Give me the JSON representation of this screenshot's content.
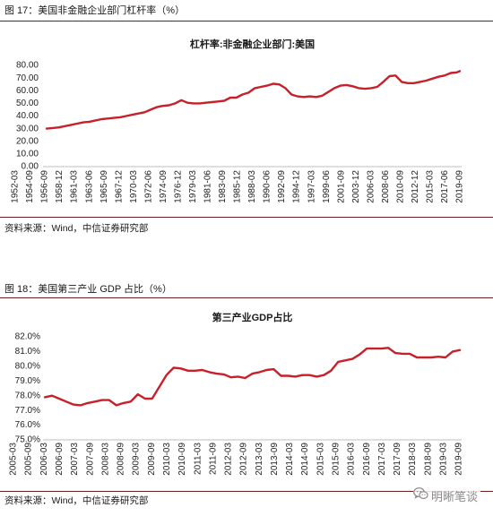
{
  "figures": [
    {
      "caption": "图 17：美国非金融企业部门杠杆率（%）",
      "source": "资料来源：Wind，中信证券研究部"
    },
    {
      "caption": "图 18：美国第三产业 GDP 占比（%）",
      "source": "资料来源：Wind，中信证券研究部"
    }
  ],
  "watermark": {
    "text": "明晰笔谈",
    "icon": "wechat-logo-icon"
  },
  "colors": {
    "line": "#c8202a",
    "rule": "#6b1f1f",
    "axis": "#bfbfbf"
  },
  "chart_data": [
    {
      "type": "line",
      "title": "杠杆率:非金融企业部门:美国",
      "xlabel": "",
      "ylabel": "",
      "xlim": [
        "1952-03",
        "2019-09"
      ],
      "ylim": [
        0,
        80
      ],
      "grid": false,
      "y_ticks": [
        "80.00",
        "70.00",
        "60.00",
        "50.00",
        "40.00",
        "30.00",
        "20.00",
        "10.00",
        "0.00"
      ],
      "x_ticks": [
        "1952-03",
        "1954-09",
        "1956-09",
        "1958-12",
        "1961-03",
        "1963-06",
        "1965-09",
        "1967-12",
        "1970-03",
        "1972-06",
        "1974-09",
        "1976-12",
        "1979-03",
        "1981-06",
        "1983-09",
        "1985-12",
        "1988-03",
        "1990-06",
        "1992-09",
        "1994-12",
        "1997-03",
        "1999-06",
        "2001-09",
        "2003-12",
        "2006-03",
        "2008-06",
        "2010-09",
        "2012-12",
        "2015-03",
        "2017-06",
        "2019-09"
      ],
      "x": [
        "1952-03",
        "1953-03",
        "1954-03",
        "1955-03",
        "1956-03",
        "1957-03",
        "1958-03",
        "1959-03",
        "1960-03",
        "1961-03",
        "1962-03",
        "1963-03",
        "1964-03",
        "1965-03",
        "1966-03",
        "1967-03",
        "1968-03",
        "1969-03",
        "1970-03",
        "1971-03",
        "1972-03",
        "1973-03",
        "1974-03",
        "1975-03",
        "1976-03",
        "1977-03",
        "1978-03",
        "1979-03",
        "1980-03",
        "1981-03",
        "1982-03",
        "1983-03",
        "1984-03",
        "1985-03",
        "1986-03",
        "1987-03",
        "1988-03",
        "1989-03",
        "1990-03",
        "1991-03",
        "1992-03",
        "1993-03",
        "1994-03",
        "1995-03",
        "1996-03",
        "1997-03",
        "1998-03",
        "1999-03",
        "2000-03",
        "2001-03",
        "2002-03",
        "2003-03",
        "2004-03",
        "2005-03",
        "2006-03",
        "2007-03",
        "2008-03",
        "2009-03",
        "2010-03",
        "2011-03",
        "2012-03",
        "2013-03",
        "2014-03",
        "2015-03",
        "2016-03",
        "2017-03",
        "2018-03",
        "2019-03",
        "2019-09"
      ],
      "y": [
        30,
        30.5,
        31,
        32,
        33,
        34,
        35,
        35.5,
        36.5,
        37.5,
        38,
        38.5,
        39,
        40,
        41,
        42,
        43,
        45,
        47,
        48,
        48.5,
        50,
        52.5,
        50.5,
        50,
        50,
        50.5,
        51,
        51.5,
        52,
        54.5,
        54.5,
        57,
        58.5,
        62,
        63,
        64,
        65.5,
        65,
        62,
        57,
        55.5,
        55,
        55.5,
        55,
        56,
        59,
        62,
        64,
        64.5,
        63.5,
        62,
        61.5,
        62,
        63,
        67,
        71.5,
        72,
        67,
        66,
        66,
        67,
        68,
        69.5,
        71,
        72,
        74,
        74.5,
        75.5
      ]
    },
    {
      "type": "line",
      "title": "第三产业GDP占比",
      "xlabel": "",
      "ylabel": "",
      "xlim": [
        "2005-03",
        "2019-09"
      ],
      "ylim": [
        75,
        82
      ],
      "grid": false,
      "y_ticks": [
        "82.0%",
        "81.0%",
        "80.0%",
        "79.0%",
        "78.0%",
        "77.0%",
        "76.0%",
        "75.0%"
      ],
      "x_ticks": [
        "2005-03",
        "2005-09",
        "2006-03",
        "2006-09",
        "2007-03",
        "2007-09",
        "2008-03",
        "2008-09",
        "2009-03",
        "2009-09",
        "2010-03",
        "2010-09",
        "2011-03",
        "2011-09",
        "2012-03",
        "2012-09",
        "2013-03",
        "2013-09",
        "2014-03",
        "2014-09",
        "2015-03",
        "2015-09",
        "2016-03",
        "2016-09",
        "2017-03",
        "2017-09",
        "2018-03",
        "2018-09",
        "2019-03",
        "2019-09"
      ],
      "x": [
        "2005-03",
        "2005-06",
        "2005-09",
        "2005-12",
        "2006-03",
        "2006-06",
        "2006-09",
        "2006-12",
        "2007-03",
        "2007-06",
        "2007-09",
        "2007-12",
        "2008-03",
        "2008-06",
        "2008-09",
        "2008-12",
        "2009-03",
        "2009-06",
        "2009-09",
        "2009-12",
        "2010-03",
        "2010-06",
        "2010-09",
        "2010-12",
        "2011-03",
        "2011-06",
        "2011-09",
        "2011-12",
        "2012-03",
        "2012-06",
        "2012-09",
        "2012-12",
        "2013-03",
        "2013-06",
        "2013-09",
        "2013-12",
        "2014-03",
        "2014-06",
        "2014-09",
        "2014-12",
        "2015-03",
        "2015-06",
        "2015-09",
        "2015-12",
        "2016-03",
        "2016-06",
        "2016-09",
        "2016-12",
        "2017-03",
        "2017-06",
        "2017-09",
        "2017-12",
        "2018-03",
        "2018-06",
        "2018-09",
        "2018-12",
        "2019-03",
        "2019-06",
        "2019-09"
      ],
      "y": [
        77.9,
        78.0,
        77.8,
        77.6,
        77.4,
        77.35,
        77.5,
        77.6,
        77.7,
        77.7,
        77.35,
        77.5,
        77.6,
        78.1,
        77.8,
        77.8,
        78.6,
        79.4,
        79.9,
        79.85,
        79.7,
        79.7,
        79.75,
        79.6,
        79.5,
        79.45,
        79.25,
        79.3,
        79.2,
        79.5,
        79.6,
        79.75,
        79.8,
        79.35,
        79.35,
        79.3,
        79.4,
        79.4,
        79.3,
        79.4,
        79.7,
        80.3,
        80.4,
        80.5,
        80.8,
        81.2,
        81.2,
        81.2,
        81.25,
        80.9,
        80.85,
        80.85,
        80.6,
        80.6,
        80.6,
        80.65,
        80.6,
        81.0,
        81.1
      ]
    }
  ]
}
